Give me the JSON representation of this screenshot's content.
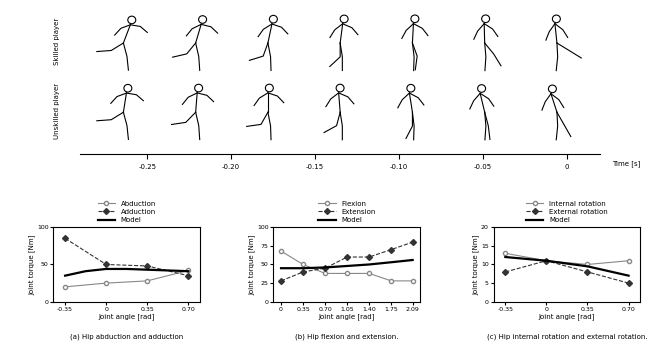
{
  "diagram": {
    "rows": [
      "Skilled player",
      "Unskilled player"
    ],
    "time_axis": {
      "label": "Time [s]",
      "xlim": [
        -0.29,
        0.02
      ],
      "xticks": [
        -0.25,
        {
          "value": -0.2,
          "label": "-0.20"
        },
        -0.15,
        {
          "value": -0.1,
          "label": "-0.10"
        },
        -0.05,
        0
      ]
    }
  },
  "chart_data": [
    {
      "type": "line",
      "caption": "(a) Hip abduction and adduction",
      "x_label": "Joint angle [rad]",
      "y_label": "Joint torque [Nm]",
      "xlim": [
        -0.45,
        0.8
      ],
      "xticks": [
        -0.35,
        0,
        0.35,
        {
          "value": 0.7,
          "label": "0.70"
        }
      ],
      "ylim": [
        0,
        100
      ],
      "yticks": [
        0,
        50,
        100
      ],
      "legend": "lower center",
      "series": [
        {
          "name": "Abduction",
          "color": "#888888",
          "marker": "circle_open",
          "line_style": "solid",
          "x": [
            -0.35,
            0,
            0.35,
            0.7
          ],
          "values": [
            20,
            25,
            28,
            42
          ]
        },
        {
          "name": "Adduction",
          "color": "#333333",
          "marker": "diamond",
          "line_style": "dashed",
          "x": [
            -0.35,
            0,
            0.35,
            0.7
          ],
          "values": [
            85,
            50,
            48,
            35
          ]
        },
        {
          "name": "Model",
          "color": "#000000",
          "marker": "none",
          "line_style": "solid",
          "x": [
            -0.35,
            -0.175,
            0,
            0.175,
            0.35,
            0.525,
            0.7
          ],
          "values": [
            35,
            41,
            44,
            44,
            43,
            42,
            41
          ]
        }
      ]
    },
    {
      "type": "line",
      "caption": "(b) Hip flexion and extension.",
      "x_label": "Joint angle [rad]",
      "y_label": "Joint torque [Nm]",
      "xlim": [
        -0.12,
        2.21
      ],
      "xticks": [
        0,
        0.35,
        {
          "value": 0.7,
          "label": "0.70"
        },
        1.05,
        {
          "value": 1.4,
          "label": "1.40"
        },
        1.75,
        2.09
      ],
      "ylim": [
        0,
        100
      ],
      "yticks": [
        0,
        25,
        50,
        75,
        100
      ],
      "legend": "lower center",
      "series": [
        {
          "name": "Flexion",
          "color": "#888888",
          "marker": "circle_open",
          "line_style": "solid",
          "x": [
            0,
            0.35,
            0.7,
            1.05,
            1.4,
            1.75,
            2.09
          ],
          "values": [
            68,
            50,
            38,
            38,
            38,
            28,
            28
          ]
        },
        {
          "name": "Extension",
          "color": "#333333",
          "marker": "diamond",
          "line_style": "dashed",
          "x": [
            0,
            0.35,
            0.7,
            1.05,
            1.4,
            1.75,
            2.09
          ],
          "values": [
            28,
            40,
            45,
            60,
            60,
            70,
            80
          ]
        },
        {
          "name": "Model",
          "color": "#000000",
          "marker": "none",
          "line_style": "solid",
          "x": [
            0,
            0.35,
            0.7,
            1.05,
            1.4,
            1.75,
            2.09
          ],
          "values": [
            45,
            45,
            46,
            48,
            50,
            53,
            56
          ]
        }
      ]
    },
    {
      "type": "line",
      "caption": "(c) Hip internal rotation and external rotation.",
      "x_label": "Joint angle [rad]",
      "y_label": "Joint torque [Nm]",
      "xlim": [
        -0.45,
        0.8
      ],
      "xticks": [
        -0.35,
        0,
        0.35,
        {
          "value": 0.7,
          "label": "0.70"
        }
      ],
      "ylim": [
        0,
        20
      ],
      "yticks": [
        0,
        5,
        10,
        15,
        20
      ],
      "legend": "lower center",
      "series": [
        {
          "name": "Internal rotation",
          "color": "#888888",
          "marker": "circle_open",
          "line_style": "solid",
          "x": [
            -0.35,
            0,
            0.35,
            0.7
          ],
          "values": [
            13,
            11,
            10,
            11
          ]
        },
        {
          "name": "External rotation",
          "color": "#333333",
          "marker": "diamond",
          "line_style": "dashed",
          "x": [
            -0.35,
            0,
            0.35,
            0.7
          ],
          "values": [
            8,
            11,
            8,
            5
          ]
        },
        {
          "name": "Model",
          "color": "#000000",
          "marker": "none",
          "line_style": "solid",
          "x": [
            -0.35,
            0,
            0.35,
            0.7
          ],
          "values": [
            12,
            11,
            9.5,
            7
          ]
        }
      ]
    }
  ]
}
